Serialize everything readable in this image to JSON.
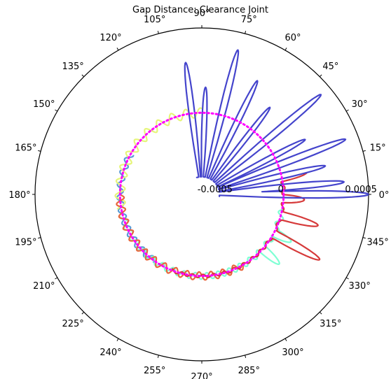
{
  "chart_data": {
    "type": "polar-line",
    "title": "Gap Distance: Clearance Joint",
    "angle_ticks": [
      "0°",
      "15°",
      "30°",
      "45°",
      "60°",
      "75°",
      "90°",
      "105°",
      "120°",
      "135°",
      "150°",
      "165°",
      "180°",
      "195°",
      "210°",
      "225°",
      "240°",
      "255°",
      "270°",
      "285°",
      "300°",
      "315°",
      "330°",
      "345°"
    ],
    "radial_ticks": [
      {
        "value": -0.0005,
        "label": "-0.0005"
      },
      {
        "value": 0,
        "label": "0"
      },
      {
        "value": 0.0005,
        "label": "0.0005"
      }
    ],
    "rlim": [
      -0.00051,
      0.00053
    ],
    "grid": false,
    "clearance_circle": {
      "radius": 0,
      "color": "#ff00ff",
      "style": "dotted"
    },
    "series": [
      {
        "color": "#5b9bd5",
        "theta_range": [
          150,
          235
        ],
        "baseline": 0,
        "ripple_amplitude": 2e-05,
        "ripple_cycles_per_rev": 40,
        "lobes": []
      },
      {
        "color": "#e6f57a",
        "theta_range": [
          90,
          190
        ],
        "baseline": 0,
        "ripple_amplitude": 3e-05,
        "ripple_cycles_per_rev": 36,
        "lobes": []
      },
      {
        "color": "#7fffd4",
        "theta_range": [
          195,
          350
        ],
        "baseline": 0,
        "ripple_amplitude": 2e-05,
        "ripple_cycles_per_rev": 44,
        "lobes": [
          {
            "theta": 318,
            "peak": 0.00014
          },
          {
            "theta": 332,
            "peak": 0.00012
          }
        ]
      },
      {
        "color": "#e8663c",
        "theta_range": [
          180,
          300
        ],
        "baseline": 0,
        "ripple_amplitude": 2.5e-05,
        "ripple_cycles_per_rev": 42,
        "lobes": []
      },
      {
        "color": "#d63a3a",
        "theta_range": [
          248,
          372
        ],
        "baseline": 0,
        "ripple_amplitude": 1e-05,
        "ripple_cycles_per_rev": 48,
        "lobes": [
          {
            "theta": 331,
            "peak": 0.00033
          },
          {
            "theta": 345,
            "peak": 0.00024
          },
          {
            "theta": 357,
            "peak": 0.00013
          },
          {
            "theta": 12,
            "peak": 0.00016
          }
        ]
      },
      {
        "color": "#4444cc",
        "theta_range": [
          -8,
          108
        ],
        "baseline": -0.0004,
        "ripple_amplitude": 0,
        "ripple_cycles_per_rev": 0,
        "lobes": [
          {
            "theta": 0,
            "peak": 0.00053
          },
          {
            "theta": 5,
            "peak": 0.00038
          },
          {
            "theta": 13,
            "peak": 0.00028
          },
          {
            "theta": 21,
            "peak": 0.00045
          },
          {
            "theta": 28,
            "peak": 0.00022
          },
          {
            "theta": 40,
            "peak": 0.00046
          },
          {
            "theta": 52,
            "peak": 0.00018
          },
          {
            "theta": 64,
            "peak": 0.00028
          },
          {
            "theta": 76,
            "peak": 0.00042
          },
          {
            "theta": 88,
            "peak": 0.00016
          },
          {
            "theta": 97,
            "peak": 0.00032
          }
        ]
      }
    ]
  }
}
